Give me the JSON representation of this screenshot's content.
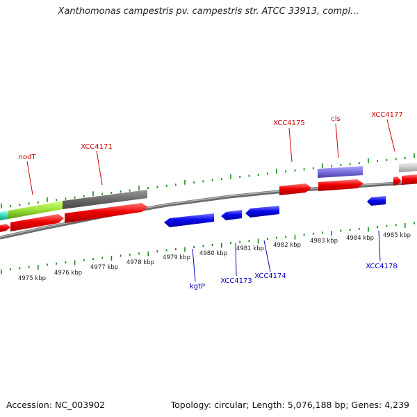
{
  "title": "Xanthomonas campestris pv. campestris str. ATCC 33913, compl...",
  "footer": {
    "accession": "Accession: NC_003902",
    "topology": "Topology: circular; Length: 5,076,188 bp; Genes: 4,239"
  },
  "colors": {
    "tick": "#1a8a1a",
    "backbone": "#888888",
    "forward_gene": "#ee0000",
    "reverse_gene": "#0000ee",
    "gene_label_forward": "#cc0000",
    "gene_label_reverse": "#0000bb",
    "kbp_label": "#222222"
  },
  "scale_labels": [
    "4975 kbp",
    "4976 kbp",
    "4977 kbp",
    "4978 kbp",
    "4979 kbp",
    "4980 kbp",
    "4981 kbp",
    "4982 kbp",
    "4983 kbp",
    "4984 kbp",
    "4985 kbp"
  ],
  "gene_labels": {
    "forward": [
      "nodT",
      "XCC4171",
      "XCC4175",
      "cls",
      "XCC4177"
    ],
    "reverse": [
      "kgtP",
      "XCC4173",
      "XCC4174",
      "XCC4178"
    ]
  }
}
